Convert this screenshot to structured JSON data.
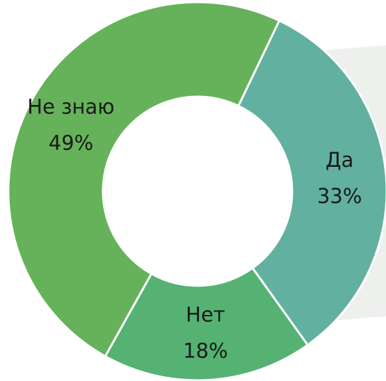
{
  "chart_data": {
    "type": "donut",
    "categories": [
      "Да",
      "Нет",
      "Не знаю"
    ],
    "values": [
      33,
      18,
      49
    ],
    "value_labels": [
      "33%",
      "18%",
      "49%"
    ],
    "colors": [
      "#62b0a0",
      "#55b272",
      "#66b25a"
    ]
  }
}
